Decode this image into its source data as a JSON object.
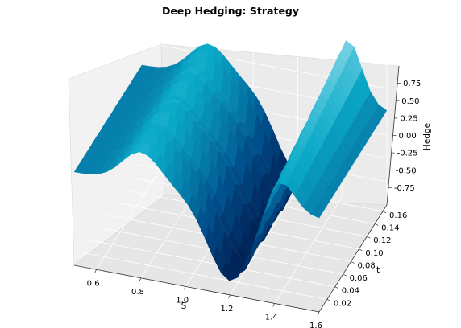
{
  "chart_data": {
    "type": "surface",
    "title": "Deep Hedging: Strategy",
    "xlabel": "S",
    "ylabel": "t",
    "zlabel": "Hedge",
    "x_ticks": [
      "0.6",
      "0.8",
      "1.0",
      "1.2",
      "1.4",
      "1.6"
    ],
    "x_tick_values": [
      0.6,
      0.8,
      1.0,
      1.2,
      1.4,
      1.6
    ],
    "y_ticks": [
      "0.02",
      "0.04",
      "0.06",
      "0.08",
      "0.10",
      "0.12",
      "0.14",
      "0.16"
    ],
    "y_tick_values": [
      0.02,
      0.04,
      0.06,
      0.08,
      0.1,
      0.12,
      0.14,
      0.16
    ],
    "z_ticks": [
      "0.75",
      "0.50",
      "0.25",
      "0.00",
      "-0.25",
      "-0.50",
      "-0.75"
    ],
    "z_tick_values": [
      0.75,
      0.5,
      0.25,
      0.0,
      -0.25,
      -0.5,
      -0.75
    ],
    "xlim": [
      0.5,
      1.6
    ],
    "ylim": [
      0.0,
      0.17
    ],
    "zlim": [
      -1.0,
      1.0
    ],
    "colormap": "ocean (navy to cyan to white)",
    "grid": true,
    "surface_profile_at_t_0.08": {
      "S": [
        0.55,
        0.7,
        0.8,
        0.9,
        1.0,
        1.1,
        1.2,
        1.3,
        1.4,
        1.5
      ],
      "hedge": [
        0.0,
        0.15,
        0.3,
        0.05,
        -0.35,
        -0.7,
        -0.85,
        -0.6,
        -0.25,
        0.0
      ]
    }
  }
}
